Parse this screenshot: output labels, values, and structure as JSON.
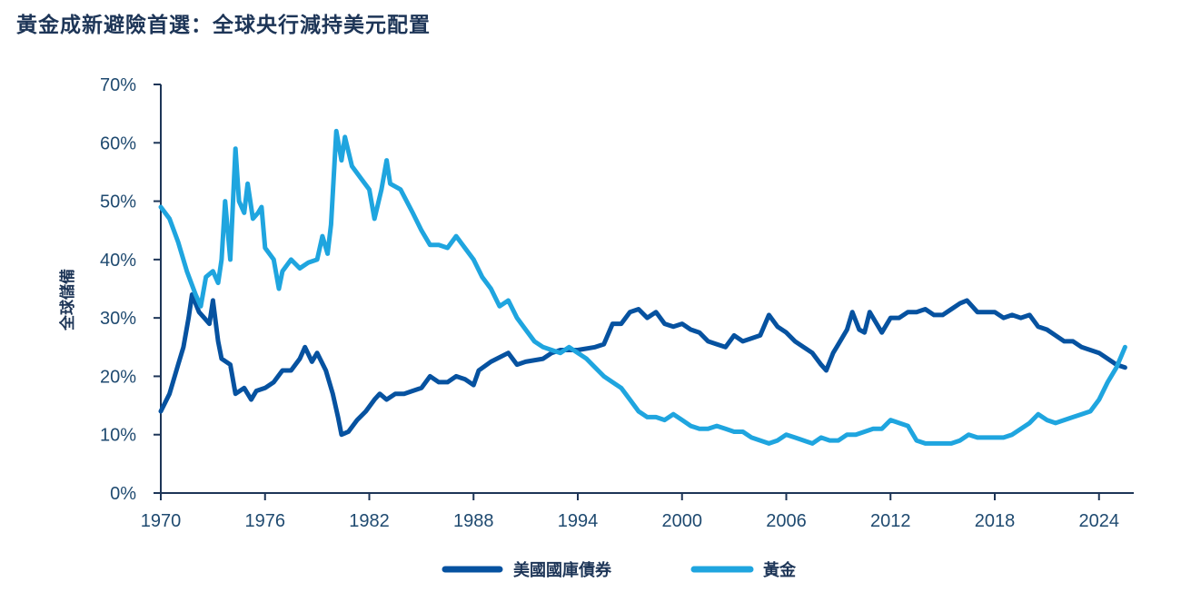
{
  "title": "黃金成新避險首選：全球央行減持美元配置",
  "chart_data": {
    "type": "line",
    "title": "黃金成新避險首選：全球央行減持美元配置",
    "xlabel": "",
    "ylabel": "全球儲備",
    "xlim": [
      1970,
      2026
    ],
    "ylim": [
      0,
      70
    ],
    "x_ticks": [
      "1970",
      "1976",
      "1982",
      "1988",
      "1994",
      "2000",
      "2006",
      "2012",
      "2018",
      "2024"
    ],
    "y_ticks": [
      "0%",
      "10%",
      "20%",
      "30%",
      "40%",
      "50%",
      "60%",
      "70%"
    ],
    "grid": false,
    "legend_position": "bottom",
    "series": [
      {
        "name": "美國國庫債券",
        "color": "#0652a0",
        "points": [
          [
            1970,
            14
          ],
          [
            1970.5,
            17
          ],
          [
            1971,
            22
          ],
          [
            1971.3,
            25
          ],
          [
            1971.6,
            30
          ],
          [
            1971.8,
            34
          ],
          [
            1972.2,
            31
          ],
          [
            1972.5,
            30
          ],
          [
            1972.8,
            29
          ],
          [
            1973,
            33
          ],
          [
            1973.3,
            26
          ],
          [
            1973.5,
            23
          ],
          [
            1974,
            22
          ],
          [
            1974.3,
            17
          ],
          [
            1974.8,
            18
          ],
          [
            1975.2,
            16
          ],
          [
            1975.5,
            17.5
          ],
          [
            1976,
            18
          ],
          [
            1976.5,
            19
          ],
          [
            1977,
            21
          ],
          [
            1977.5,
            21
          ],
          [
            1978,
            23
          ],
          [
            1978.3,
            25
          ],
          [
            1978.7,
            22.5
          ],
          [
            1979,
            24
          ],
          [
            1979.5,
            21
          ],
          [
            1979.9,
            17
          ],
          [
            1980.2,
            13
          ],
          [
            1980.4,
            10
          ],
          [
            1980.8,
            10.5
          ],
          [
            1981.3,
            12.5
          ],
          [
            1981.8,
            14
          ],
          [
            1982.3,
            16
          ],
          [
            1982.6,
            17
          ],
          [
            1983,
            16
          ],
          [
            1983.5,
            17
          ],
          [
            1984,
            17
          ],
          [
            1984.5,
            17.5
          ],
          [
            1985,
            18
          ],
          [
            1985.5,
            20
          ],
          [
            1986,
            19
          ],
          [
            1986.5,
            19
          ],
          [
            1987,
            20
          ],
          [
            1987.5,
            19.5
          ],
          [
            1988,
            18.5
          ],
          [
            1988.3,
            21
          ],
          [
            1989,
            22.5
          ],
          [
            1990,
            24
          ],
          [
            1990.5,
            22
          ],
          [
            1991,
            22.5
          ],
          [
            1992,
            23
          ],
          [
            1992.5,
            24
          ],
          [
            1993,
            24.5
          ],
          [
            1994,
            24.5
          ],
          [
            1995,
            25
          ],
          [
            1995.5,
            25.5
          ],
          [
            1996,
            29
          ],
          [
            1996.5,
            29
          ],
          [
            1997,
            31
          ],
          [
            1997.5,
            31.5
          ],
          [
            1998,
            30
          ],
          [
            1998.5,
            31
          ],
          [
            1999,
            29
          ],
          [
            1999.5,
            28.5
          ],
          [
            2000,
            29
          ],
          [
            2000.5,
            28
          ],
          [
            2001,
            27.5
          ],
          [
            2001.5,
            26
          ],
          [
            2002,
            25.5
          ],
          [
            2002.5,
            25
          ],
          [
            2003,
            27
          ],
          [
            2003.5,
            26
          ],
          [
            2004,
            26.5
          ],
          [
            2004.5,
            27
          ],
          [
            2005,
            30.5
          ],
          [
            2005.5,
            28.5
          ],
          [
            2006,
            27.5
          ],
          [
            2006.5,
            26
          ],
          [
            2007,
            25
          ],
          [
            2007.5,
            24
          ],
          [
            2008,
            22
          ],
          [
            2008.3,
            21
          ],
          [
            2008.7,
            24
          ],
          [
            2009,
            25.5
          ],
          [
            2009.5,
            28
          ],
          [
            2009.8,
            31
          ],
          [
            2010.2,
            28
          ],
          [
            2010.5,
            27.5
          ],
          [
            2010.8,
            31
          ],
          [
            2011.2,
            29
          ],
          [
            2011.5,
            27.5
          ],
          [
            2012,
            30
          ],
          [
            2012.5,
            30
          ],
          [
            2013,
            31
          ],
          [
            2013.5,
            31
          ],
          [
            2014,
            31.5
          ],
          [
            2014.5,
            30.5
          ],
          [
            2015,
            30.5
          ],
          [
            2015.5,
            31.5
          ],
          [
            2016,
            32.5
          ],
          [
            2016.4,
            33
          ],
          [
            2017,
            31
          ],
          [
            2017.5,
            31
          ],
          [
            2018,
            31
          ],
          [
            2018.5,
            30
          ],
          [
            2019,
            30.5
          ],
          [
            2019.5,
            30
          ],
          [
            2020,
            30.5
          ],
          [
            2020.5,
            28.5
          ],
          [
            2021,
            28
          ],
          [
            2021.5,
            27
          ],
          [
            2022,
            26
          ],
          [
            2022.5,
            26
          ],
          [
            2023,
            25
          ],
          [
            2023.5,
            24.5
          ],
          [
            2024,
            24
          ],
          [
            2024.5,
            23
          ],
          [
            2025,
            22
          ],
          [
            2025.5,
            21.5
          ]
        ]
      },
      {
        "name": "黃金",
        "color": "#1fa5df",
        "points": [
          [
            1970,
            49
          ],
          [
            1970.5,
            47
          ],
          [
            1971,
            43
          ],
          [
            1971.5,
            38
          ],
          [
            1972,
            34
          ],
          [
            1972.3,
            32
          ],
          [
            1972.6,
            37
          ],
          [
            1973,
            38
          ],
          [
            1973.3,
            36
          ],
          [
            1973.5,
            40
          ],
          [
            1973.7,
            50
          ],
          [
            1974,
            40
          ],
          [
            1974.3,
            59
          ],
          [
            1974.5,
            50
          ],
          [
            1974.8,
            48
          ],
          [
            1975,
            53
          ],
          [
            1975.3,
            47
          ],
          [
            1975.6,
            48
          ],
          [
            1975.8,
            49
          ],
          [
            1976,
            42
          ],
          [
            1976.5,
            40
          ],
          [
            1976.8,
            35
          ],
          [
            1977,
            38
          ],
          [
            1977.5,
            40
          ],
          [
            1978,
            38.5
          ],
          [
            1978.5,
            39.5
          ],
          [
            1979,
            40
          ],
          [
            1979.3,
            44
          ],
          [
            1979.6,
            41
          ],
          [
            1979.8,
            46
          ],
          [
            1980.1,
            62
          ],
          [
            1980.4,
            57
          ],
          [
            1980.6,
            61
          ],
          [
            1981,
            56
          ],
          [
            1981.5,
            54
          ],
          [
            1982,
            52
          ],
          [
            1982.3,
            47
          ],
          [
            1982.7,
            52
          ],
          [
            1983,
            57
          ],
          [
            1983.2,
            53
          ],
          [
            1983.8,
            52
          ],
          [
            1984.5,
            48
          ],
          [
            1985,
            45
          ],
          [
            1985.5,
            42.5
          ],
          [
            1986,
            42.5
          ],
          [
            1986.5,
            42
          ],
          [
            1987,
            44
          ],
          [
            1987.5,
            42
          ],
          [
            1988,
            40
          ],
          [
            1988.5,
            37
          ],
          [
            1989,
            35
          ],
          [
            1989.5,
            32
          ],
          [
            1990,
            33
          ],
          [
            1990.5,
            30
          ],
          [
            1991,
            28
          ],
          [
            1991.5,
            26
          ],
          [
            1992,
            25
          ],
          [
            1992.5,
            24.5
          ],
          [
            1993,
            24
          ],
          [
            1993.5,
            25
          ],
          [
            1994,
            24
          ],
          [
            1994.5,
            23
          ],
          [
            1995,
            21.5
          ],
          [
            1995.5,
            20
          ],
          [
            1996,
            19
          ],
          [
            1996.5,
            18
          ],
          [
            1997,
            16
          ],
          [
            1997.5,
            14
          ],
          [
            1998,
            13
          ],
          [
            1998.5,
            13
          ],
          [
            1999,
            12.5
          ],
          [
            1999.5,
            13.5
          ],
          [
            2000,
            12.5
          ],
          [
            2000.5,
            11.5
          ],
          [
            2001,
            11
          ],
          [
            2001.5,
            11
          ],
          [
            2002,
            11.5
          ],
          [
            2002.5,
            11
          ],
          [
            2003,
            10.5
          ],
          [
            2003.5,
            10.5
          ],
          [
            2004,
            9.5
          ],
          [
            2004.5,
            9
          ],
          [
            2005,
            8.5
          ],
          [
            2005.5,
            9
          ],
          [
            2006,
            10
          ],
          [
            2006.5,
            9.5
          ],
          [
            2007,
            9
          ],
          [
            2007.5,
            8.5
          ],
          [
            2008,
            9.5
          ],
          [
            2008.5,
            9
          ],
          [
            2009,
            9
          ],
          [
            2009.5,
            10
          ],
          [
            2010,
            10
          ],
          [
            2010.5,
            10.5
          ],
          [
            2011,
            11
          ],
          [
            2011.5,
            11
          ],
          [
            2012,
            12.5
          ],
          [
            2012.5,
            12
          ],
          [
            2013,
            11.5
          ],
          [
            2013.5,
            9
          ],
          [
            2014,
            8.5
          ],
          [
            2014.5,
            8.5
          ],
          [
            2015,
            8.5
          ],
          [
            2015.5,
            8.5
          ],
          [
            2016,
            9
          ],
          [
            2016.5,
            10
          ],
          [
            2017,
            9.5
          ],
          [
            2017.5,
            9.5
          ],
          [
            2018,
            9.5
          ],
          [
            2018.5,
            9.5
          ],
          [
            2019,
            10
          ],
          [
            2019.5,
            11
          ],
          [
            2020,
            12
          ],
          [
            2020.5,
            13.5
          ],
          [
            2021,
            12.5
          ],
          [
            2021.5,
            12
          ],
          [
            2022,
            12.5
          ],
          [
            2022.5,
            13
          ],
          [
            2023,
            13.5
          ],
          [
            2023.5,
            14
          ],
          [
            2024,
            16
          ],
          [
            2024.5,
            19
          ],
          [
            2025,
            21.5
          ],
          [
            2025.5,
            25
          ]
        ]
      }
    ]
  }
}
